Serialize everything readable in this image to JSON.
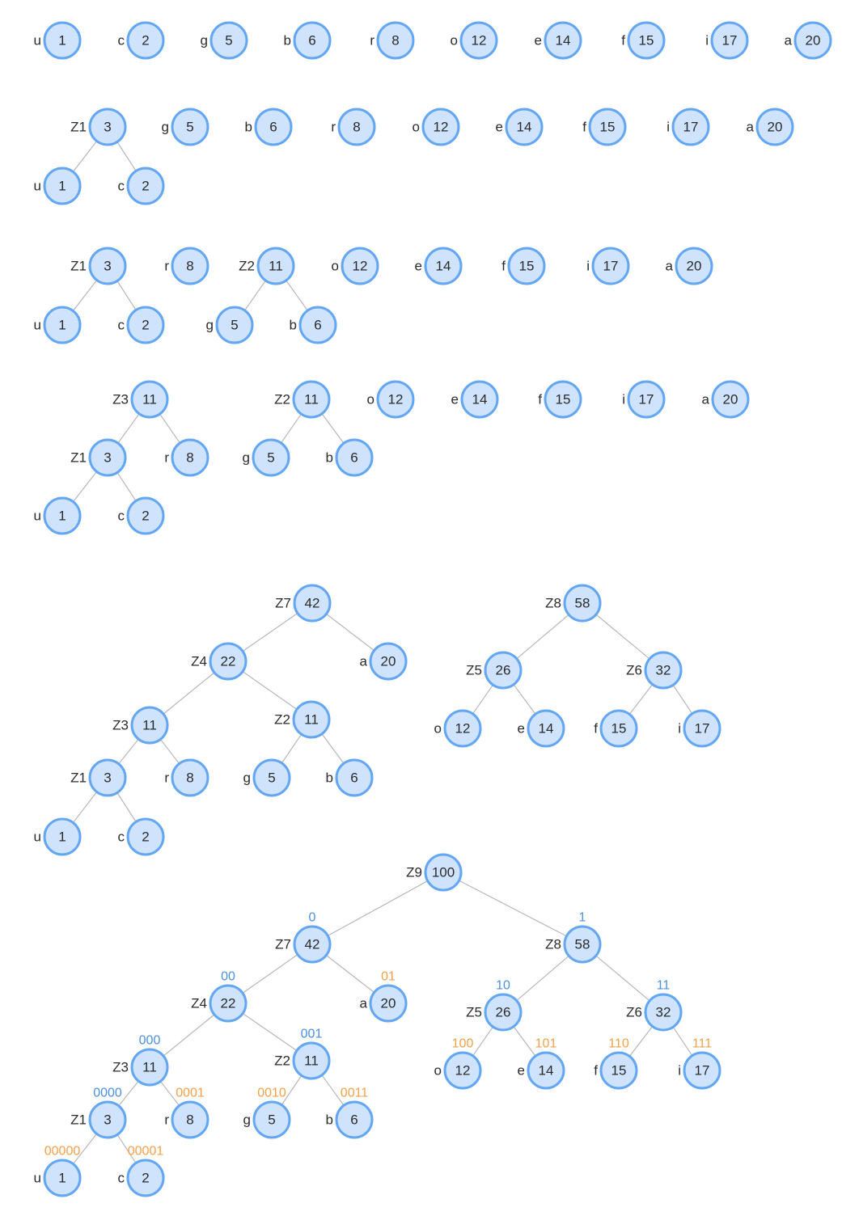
{
  "rows": [
    {
      "nodes": [
        {
          "id": "u",
          "label": "u",
          "value": "1"
        },
        {
          "id": "c",
          "label": "c",
          "value": "2"
        },
        {
          "id": "g",
          "label": "g",
          "value": "5"
        },
        {
          "id": "b",
          "label": "b",
          "value": "6"
        },
        {
          "id": "r",
          "label": "r",
          "value": "8"
        },
        {
          "id": "o",
          "label": "o",
          "value": "12"
        },
        {
          "id": "e",
          "label": "e",
          "value": "14"
        },
        {
          "id": "f",
          "label": "f",
          "value": "15"
        },
        {
          "id": "i",
          "label": "i",
          "value": "17"
        },
        {
          "id": "a",
          "label": "a",
          "value": "20"
        }
      ],
      "edges": []
    },
    {
      "nodes": [
        {
          "id": "Z1",
          "label": "Z1",
          "value": "3"
        },
        {
          "id": "u",
          "label": "u",
          "value": "1"
        },
        {
          "id": "c",
          "label": "c",
          "value": "2"
        },
        {
          "id": "g",
          "label": "g",
          "value": "5"
        },
        {
          "id": "b",
          "label": "b",
          "value": "6"
        },
        {
          "id": "r",
          "label": "r",
          "value": "8"
        },
        {
          "id": "o",
          "label": "o",
          "value": "12"
        },
        {
          "id": "e",
          "label": "e",
          "value": "14"
        },
        {
          "id": "f",
          "label": "f",
          "value": "15"
        },
        {
          "id": "i",
          "label": "i",
          "value": "17"
        },
        {
          "id": "a",
          "label": "a",
          "value": "20"
        }
      ],
      "edges": [
        [
          "Z1",
          "u"
        ],
        [
          "Z1",
          "c"
        ]
      ]
    },
    {
      "nodes": [
        {
          "id": "Z1",
          "label": "Z1",
          "value": "3"
        },
        {
          "id": "u",
          "label": "u",
          "value": "1"
        },
        {
          "id": "c",
          "label": "c",
          "value": "2"
        },
        {
          "id": "r",
          "label": "r",
          "value": "8"
        },
        {
          "id": "Z2",
          "label": "Z2",
          "value": "11"
        },
        {
          "id": "g",
          "label": "g",
          "value": "5"
        },
        {
          "id": "b",
          "label": "b",
          "value": "6"
        },
        {
          "id": "o",
          "label": "o",
          "value": "12"
        },
        {
          "id": "e",
          "label": "e",
          "value": "14"
        },
        {
          "id": "f",
          "label": "f",
          "value": "15"
        },
        {
          "id": "i",
          "label": "i",
          "value": "17"
        },
        {
          "id": "a",
          "label": "a",
          "value": "20"
        }
      ],
      "edges": [
        [
          "Z1",
          "u"
        ],
        [
          "Z1",
          "c"
        ],
        [
          "Z2",
          "g"
        ],
        [
          "Z2",
          "b"
        ]
      ]
    },
    {
      "nodes": [
        {
          "id": "Z3",
          "label": "Z3",
          "value": "11"
        },
        {
          "id": "Z1",
          "label": "Z1",
          "value": "3"
        },
        {
          "id": "r",
          "label": "r",
          "value": "8"
        },
        {
          "id": "u",
          "label": "u",
          "value": "1"
        },
        {
          "id": "c",
          "label": "c",
          "value": "2"
        },
        {
          "id": "Z2",
          "label": "Z2",
          "value": "11"
        },
        {
          "id": "g",
          "label": "g",
          "value": "5"
        },
        {
          "id": "b",
          "label": "b",
          "value": "6"
        },
        {
          "id": "o",
          "label": "o",
          "value": "12"
        },
        {
          "id": "e",
          "label": "e",
          "value": "14"
        },
        {
          "id": "f",
          "label": "f",
          "value": "15"
        },
        {
          "id": "i",
          "label": "i",
          "value": "17"
        },
        {
          "id": "a",
          "label": "a",
          "value": "20"
        }
      ],
      "edges": [
        [
          "Z3",
          "Z1"
        ],
        [
          "Z3",
          "r"
        ],
        [
          "Z1",
          "u"
        ],
        [
          "Z1",
          "c"
        ],
        [
          "Z2",
          "g"
        ],
        [
          "Z2",
          "b"
        ]
      ]
    },
    {
      "nodes": [
        {
          "id": "Z7",
          "label": "Z7",
          "value": "42"
        },
        {
          "id": "Z4",
          "label": "Z4",
          "value": "22"
        },
        {
          "id": "a",
          "label": "a",
          "value": "20"
        },
        {
          "id": "Z3",
          "label": "Z3",
          "value": "11"
        },
        {
          "id": "Z2",
          "label": "Z2",
          "value": "11"
        },
        {
          "id": "Z1",
          "label": "Z1",
          "value": "3"
        },
        {
          "id": "r",
          "label": "r",
          "value": "8"
        },
        {
          "id": "g",
          "label": "g",
          "value": "5"
        },
        {
          "id": "b",
          "label": "b",
          "value": "6"
        },
        {
          "id": "u",
          "label": "u",
          "value": "1"
        },
        {
          "id": "c",
          "label": "c",
          "value": "2"
        },
        {
          "id": "Z8",
          "label": "Z8",
          "value": "58"
        },
        {
          "id": "Z5",
          "label": "Z5",
          "value": "26"
        },
        {
          "id": "Z6",
          "label": "Z6",
          "value": "32"
        },
        {
          "id": "o",
          "label": "o",
          "value": "12"
        },
        {
          "id": "e",
          "label": "e",
          "value": "14"
        },
        {
          "id": "f",
          "label": "f",
          "value": "15"
        },
        {
          "id": "i",
          "label": "i",
          "value": "17"
        }
      ],
      "edges": [
        [
          "Z7",
          "Z4"
        ],
        [
          "Z7",
          "a"
        ],
        [
          "Z4",
          "Z3"
        ],
        [
          "Z4",
          "Z2"
        ],
        [
          "Z3",
          "Z1"
        ],
        [
          "Z3",
          "r"
        ],
        [
          "Z2",
          "g"
        ],
        [
          "Z2",
          "b"
        ],
        [
          "Z1",
          "u"
        ],
        [
          "Z1",
          "c"
        ],
        [
          "Z8",
          "Z5"
        ],
        [
          "Z8",
          "Z6"
        ],
        [
          "Z5",
          "o"
        ],
        [
          "Z5",
          "e"
        ],
        [
          "Z6",
          "f"
        ],
        [
          "Z6",
          "i"
        ]
      ]
    },
    {
      "nodes": [
        {
          "id": "Z9",
          "label": "Z9",
          "value": "100"
        },
        {
          "id": "Z7",
          "label": "Z7",
          "value": "42",
          "code": "0",
          "code_type": "internal"
        },
        {
          "id": "Z8",
          "label": "Z8",
          "value": "58",
          "code": "1",
          "code_type": "internal"
        },
        {
          "id": "Z4",
          "label": "Z4",
          "value": "22",
          "code": "00",
          "code_type": "internal"
        },
        {
          "id": "a",
          "label": "a",
          "value": "20",
          "code": "01",
          "code_type": "leaf"
        },
        {
          "id": "Z5",
          "label": "Z5",
          "value": "26",
          "code": "10",
          "code_type": "internal"
        },
        {
          "id": "Z6",
          "label": "Z6",
          "value": "32",
          "code": "11",
          "code_type": "internal"
        },
        {
          "id": "Z3",
          "label": "Z3",
          "value": "11",
          "code": "000",
          "code_type": "internal"
        },
        {
          "id": "Z2",
          "label": "Z2",
          "value": "11",
          "code": "001",
          "code_type": "internal"
        },
        {
          "id": "o",
          "label": "o",
          "value": "12",
          "code": "100",
          "code_type": "leaf"
        },
        {
          "id": "e",
          "label": "e",
          "value": "14",
          "code": "101",
          "code_type": "leaf"
        },
        {
          "id": "f",
          "label": "f",
          "value": "15",
          "code": "110",
          "code_type": "leaf"
        },
        {
          "id": "i",
          "label": "i",
          "value": "17",
          "code": "111",
          "code_type": "leaf"
        },
        {
          "id": "Z1",
          "label": "Z1",
          "value": "3",
          "code": "0000",
          "code_type": "internal"
        },
        {
          "id": "r",
          "label": "r",
          "value": "8",
          "code": "0001",
          "code_type": "leaf"
        },
        {
          "id": "g",
          "label": "g",
          "value": "5",
          "code": "0010",
          "code_type": "leaf"
        },
        {
          "id": "b",
          "label": "b",
          "value": "6",
          "code": "0011",
          "code_type": "leaf"
        },
        {
          "id": "u",
          "label": "u",
          "value": "1",
          "code": "00000",
          "code_type": "leaf"
        },
        {
          "id": "c",
          "label": "c",
          "value": "2",
          "code": "00001",
          "code_type": "leaf"
        }
      ],
      "edges": [
        [
          "Z9",
          "Z7"
        ],
        [
          "Z9",
          "Z8"
        ],
        [
          "Z7",
          "Z4"
        ],
        [
          "Z7",
          "a"
        ],
        [
          "Z4",
          "Z3"
        ],
        [
          "Z4",
          "Z2"
        ],
        [
          "Z3",
          "Z1"
        ],
        [
          "Z3",
          "r"
        ],
        [
          "Z2",
          "g"
        ],
        [
          "Z2",
          "b"
        ],
        [
          "Z1",
          "u"
        ],
        [
          "Z1",
          "c"
        ],
        [
          "Z8",
          "Z5"
        ],
        [
          "Z8",
          "Z6"
        ],
        [
          "Z5",
          "o"
        ],
        [
          "Z5",
          "e"
        ],
        [
          "Z6",
          "f"
        ],
        [
          "Z6",
          "i"
        ]
      ]
    }
  ],
  "colors": {
    "node_fill": "#cfe3fd",
    "node_stroke": "#63a6f3",
    "edge": "#b7b7b7",
    "internal_code": "#4a90e2",
    "leaf_code": "#f5a04a"
  }
}
